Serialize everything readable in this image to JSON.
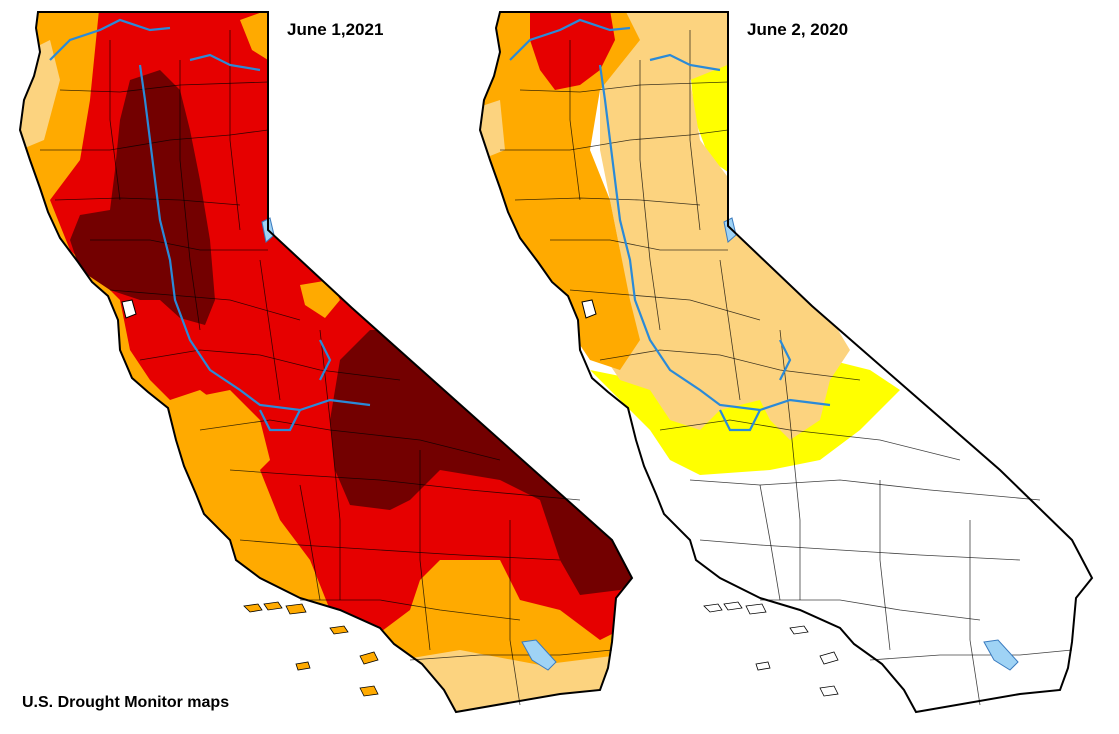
{
  "maps": {
    "left": {
      "date": "June 1,2021"
    },
    "right": {
      "date": "June 2, 2020"
    }
  },
  "caption": "U.S. Drought Monitor maps",
  "colors": {
    "none": "#ffffff",
    "abnormally_dry": "#ffff00",
    "moderate": "#fcd37f",
    "severe": "#ffaa00",
    "extreme": "#e60000",
    "exceptional": "#730000",
    "water": "#9fd3f5",
    "rivers": "#2a8ad8",
    "borders": "#000000"
  }
}
